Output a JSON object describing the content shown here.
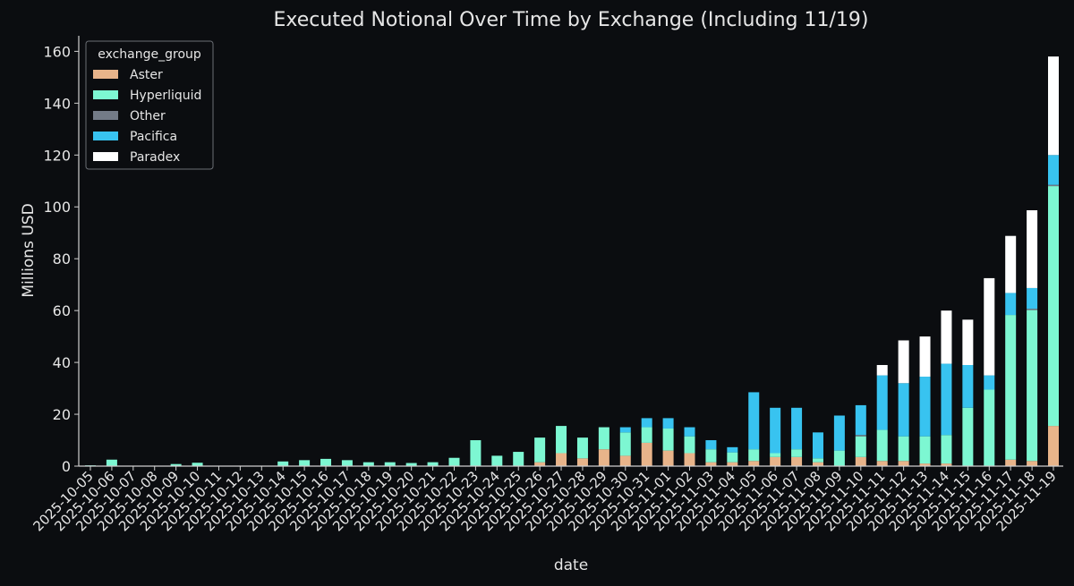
{
  "chart_data": {
    "type": "bar",
    "stacked": true,
    "title": "Executed Notional Over Time by Exchange (Including 11/19)",
    "xlabel": "date",
    "ylabel": "Millions USD",
    "ylim": [
      0,
      166
    ],
    "yticks": [
      0,
      20,
      40,
      60,
      80,
      100,
      120,
      140,
      160
    ],
    "grid": false,
    "legend": {
      "title": "exchange_group",
      "placement": "top-left"
    },
    "colors": {
      "Aster": "#e8b48a",
      "Hyperliquid": "#7df7d2",
      "Other": "#737b87",
      "Pacifica": "#38c3f0",
      "Paradex": "#ffffff",
      "background": "#0b0d10",
      "axes": "#d0d0d0"
    },
    "categories": [
      "2025-10-05",
      "2025-10-06",
      "2025-10-07",
      "2025-10-08",
      "2025-10-09",
      "2025-10-10",
      "2025-10-11",
      "2025-10-12",
      "2025-10-13",
      "2025-10-14",
      "2025-10-15",
      "2025-10-16",
      "2025-10-17",
      "2025-10-18",
      "2025-10-19",
      "2025-10-20",
      "2025-10-21",
      "2025-10-22",
      "2025-10-23",
      "2025-10-24",
      "2025-10-25",
      "2025-10-26",
      "2025-10-27",
      "2025-10-28",
      "2025-10-29",
      "2025-10-30",
      "2025-10-31",
      "2025-11-01",
      "2025-11-02",
      "2025-11-03",
      "2025-11-04",
      "2025-11-05",
      "2025-11-06",
      "2025-11-07",
      "2025-11-08",
      "2025-11-09",
      "2025-11-10",
      "2025-11-11",
      "2025-11-12",
      "2025-11-13",
      "2025-11-14",
      "2025-11-15",
      "2025-11-16",
      "2025-11-17",
      "2025-11-18",
      "2025-11-19"
    ],
    "series": [
      {
        "name": "Aster",
        "values": [
          0,
          0,
          0,
          0,
          0,
          0,
          0,
          0,
          0,
          0,
          0,
          0,
          0,
          0,
          0,
          0,
          0,
          0,
          0,
          0,
          0,
          1.5,
          5,
          3,
          6.5,
          4,
          9,
          6,
          5,
          1.5,
          1.5,
          2,
          3.5,
          3.5,
          1.5,
          0,
          3.5,
          2,
          2,
          1,
          1,
          0,
          0,
          2.5,
          2,
          15.5
        ]
      },
      {
        "name": "Hyperliquid",
        "values": [
          0.3,
          2.5,
          0,
          0,
          0.8,
          1.3,
          0,
          0,
          0,
          1.8,
          2.3,
          2.8,
          2.3,
          1.5,
          1.5,
          1.2,
          1.5,
          3.2,
          10,
          4,
          5.5,
          9.5,
          10.5,
          8,
          8.5,
          9,
          6,
          8.5,
          6.5,
          5,
          3.8,
          4.5,
          1.5,
          3,
          1.5,
          6,
          8,
          12,
          9.5,
          10.5,
          11,
          22.5,
          29.5,
          55.8,
          58.2,
          92.5
        ]
      },
      {
        "name": "Other",
        "values": [
          0,
          0,
          0,
          0,
          0,
          0,
          0,
          0,
          0,
          0,
          0,
          0,
          0,
          0,
          0,
          0,
          0,
          0,
          0,
          0,
          0,
          0,
          0,
          0,
          0,
          0,
          0,
          0,
          0,
          0,
          0,
          0,
          0,
          0,
          0,
          0,
          0.5,
          0,
          0,
          0,
          0,
          0,
          0,
          0,
          0.5,
          0.5
        ]
      },
      {
        "name": "Pacifica",
        "values": [
          0,
          0,
          0,
          0,
          0,
          0,
          0,
          0,
          0,
          0,
          0,
          0,
          0,
          0,
          0,
          0,
          0,
          0,
          0,
          0,
          0,
          0,
          0,
          0,
          0,
          2,
          3.5,
          4,
          3.5,
          3.5,
          2,
          22,
          17.5,
          16,
          10,
          13.5,
          11.5,
          21,
          20.5,
          23,
          27.5,
          16.5,
          5.5,
          8.5,
          8,
          11.5
        ]
      },
      {
        "name": "Paradex",
        "values": [
          0,
          0,
          0,
          0,
          0,
          0,
          0,
          0,
          0,
          0,
          0,
          0,
          0,
          0,
          0,
          0,
          0,
          0,
          0,
          0,
          0,
          0,
          0,
          0,
          0,
          0,
          0,
          0,
          0,
          0,
          0,
          0,
          0,
          0,
          0,
          0,
          0,
          4,
          16.5,
          15.5,
          20.5,
          17.5,
          37.5,
          22,
          30,
          38
        ]
      }
    ]
  }
}
